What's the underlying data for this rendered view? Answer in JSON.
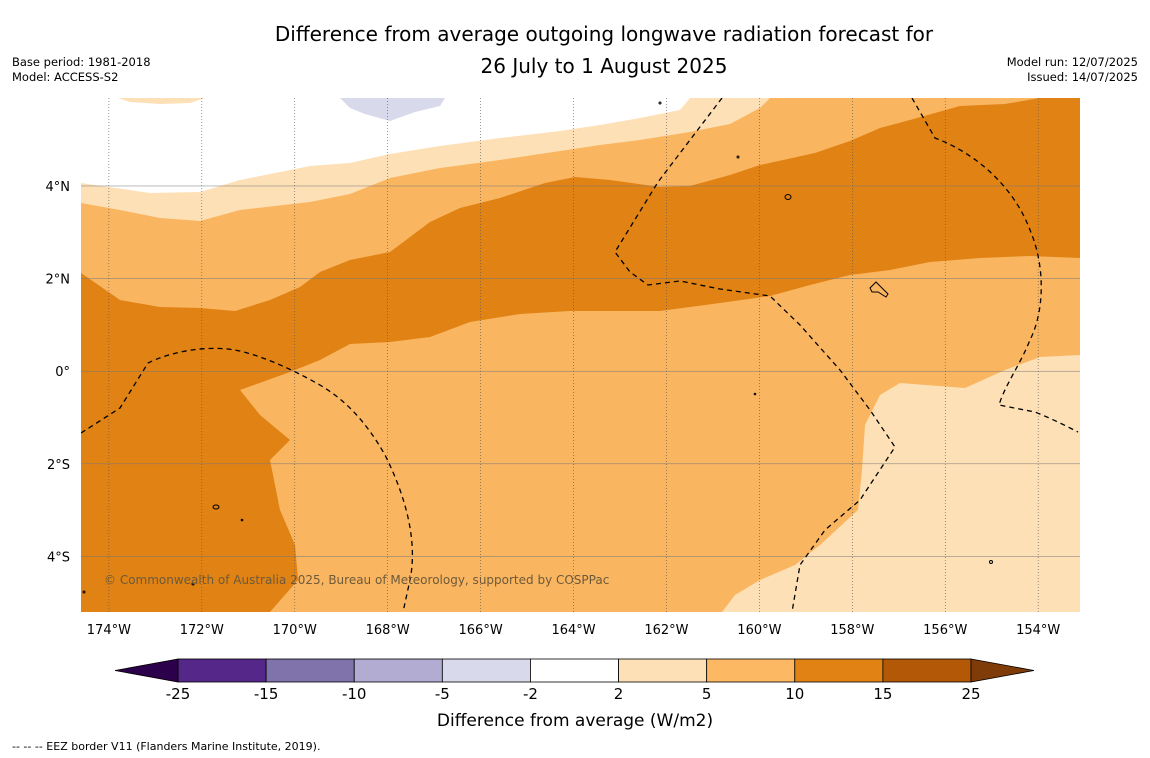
{
  "header": {
    "title_line1": "Difference from average outgoing longwave radiation forecast for",
    "title_line2": "26 July to 1 August 2025",
    "base_period": "Base period: 1981-2018",
    "model": "Model: ACCESS-S2",
    "model_run": "Model run: 12/07/2025",
    "issued": "Issued: 14/07/2025"
  },
  "map": {
    "copyright": "© Commonwealth of Australia 2025, Bureau of Meteorology, supported by COSPPac",
    "lat_labels": [
      "4°N",
      "2°N",
      "0°",
      "2°S",
      "4°S"
    ],
    "lon_labels": [
      "174°W",
      "172°W",
      "170°W",
      "168°W",
      "166°W",
      "164°W",
      "162°W",
      "160°W",
      "158°W",
      "156°W",
      "154°W"
    ],
    "lat_range": [
      -5.2,
      5.9
    ],
    "lon_range": [
      -174.6,
      -153.1
    ],
    "colors": {
      "band_2_5": "#fde0b6",
      "band_5_10": "#fab560",
      "band_10_15": "#e08214",
      "band_neg5_neg2": "#d8daeb",
      "background": "#ffffff"
    }
  },
  "colorbar": {
    "ticks": [
      "-25",
      "-15",
      "-10",
      "-5",
      "-2",
      "2",
      "5",
      "10",
      "15",
      "25"
    ],
    "colors": [
      "#542788",
      "#8073ac",
      "#b2abd2",
      "#d8daeb",
      "#ffffff",
      "#fee0b6",
      "#fdb863",
      "#e08214",
      "#b35806"
    ],
    "low_extend_color": "#2d004b",
    "high_extend_color": "#7f3b08",
    "label": "Difference from average (W/m2)"
  },
  "footnote": "--  --  -- EEZ border V11 (Flanders Marine Institute, 2019)."
}
